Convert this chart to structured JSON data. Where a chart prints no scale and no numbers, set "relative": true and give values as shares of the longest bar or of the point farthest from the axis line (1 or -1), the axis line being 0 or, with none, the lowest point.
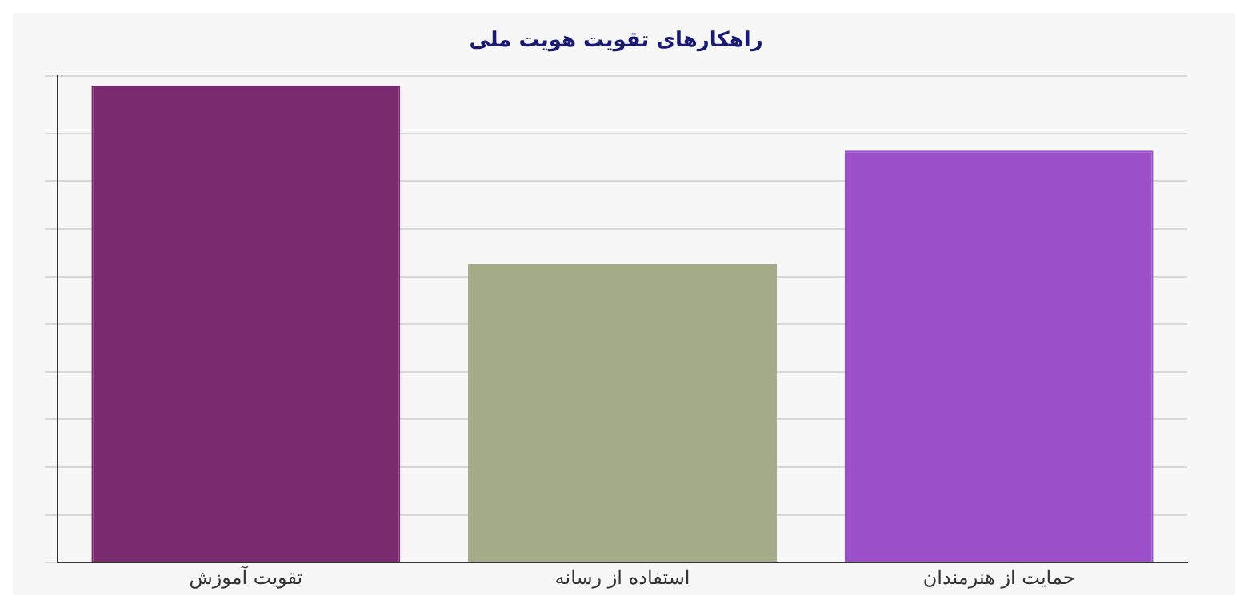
{
  "chart_data": {
    "type": "bar",
    "title": "راهکارهای تقویت هویت ملی",
    "categories": [
      "تقویت آموزش",
      "استفاده از رسانه",
      "حمایت از هنرمندان"
    ],
    "values": [
      1,
      0.626,
      0.864
    ],
    "colors": [
      "#7a2a6e",
      "#a4ab88",
      "#9b4fc9"
    ],
    "relative": true,
    "grid": "y",
    "legend": false
  }
}
